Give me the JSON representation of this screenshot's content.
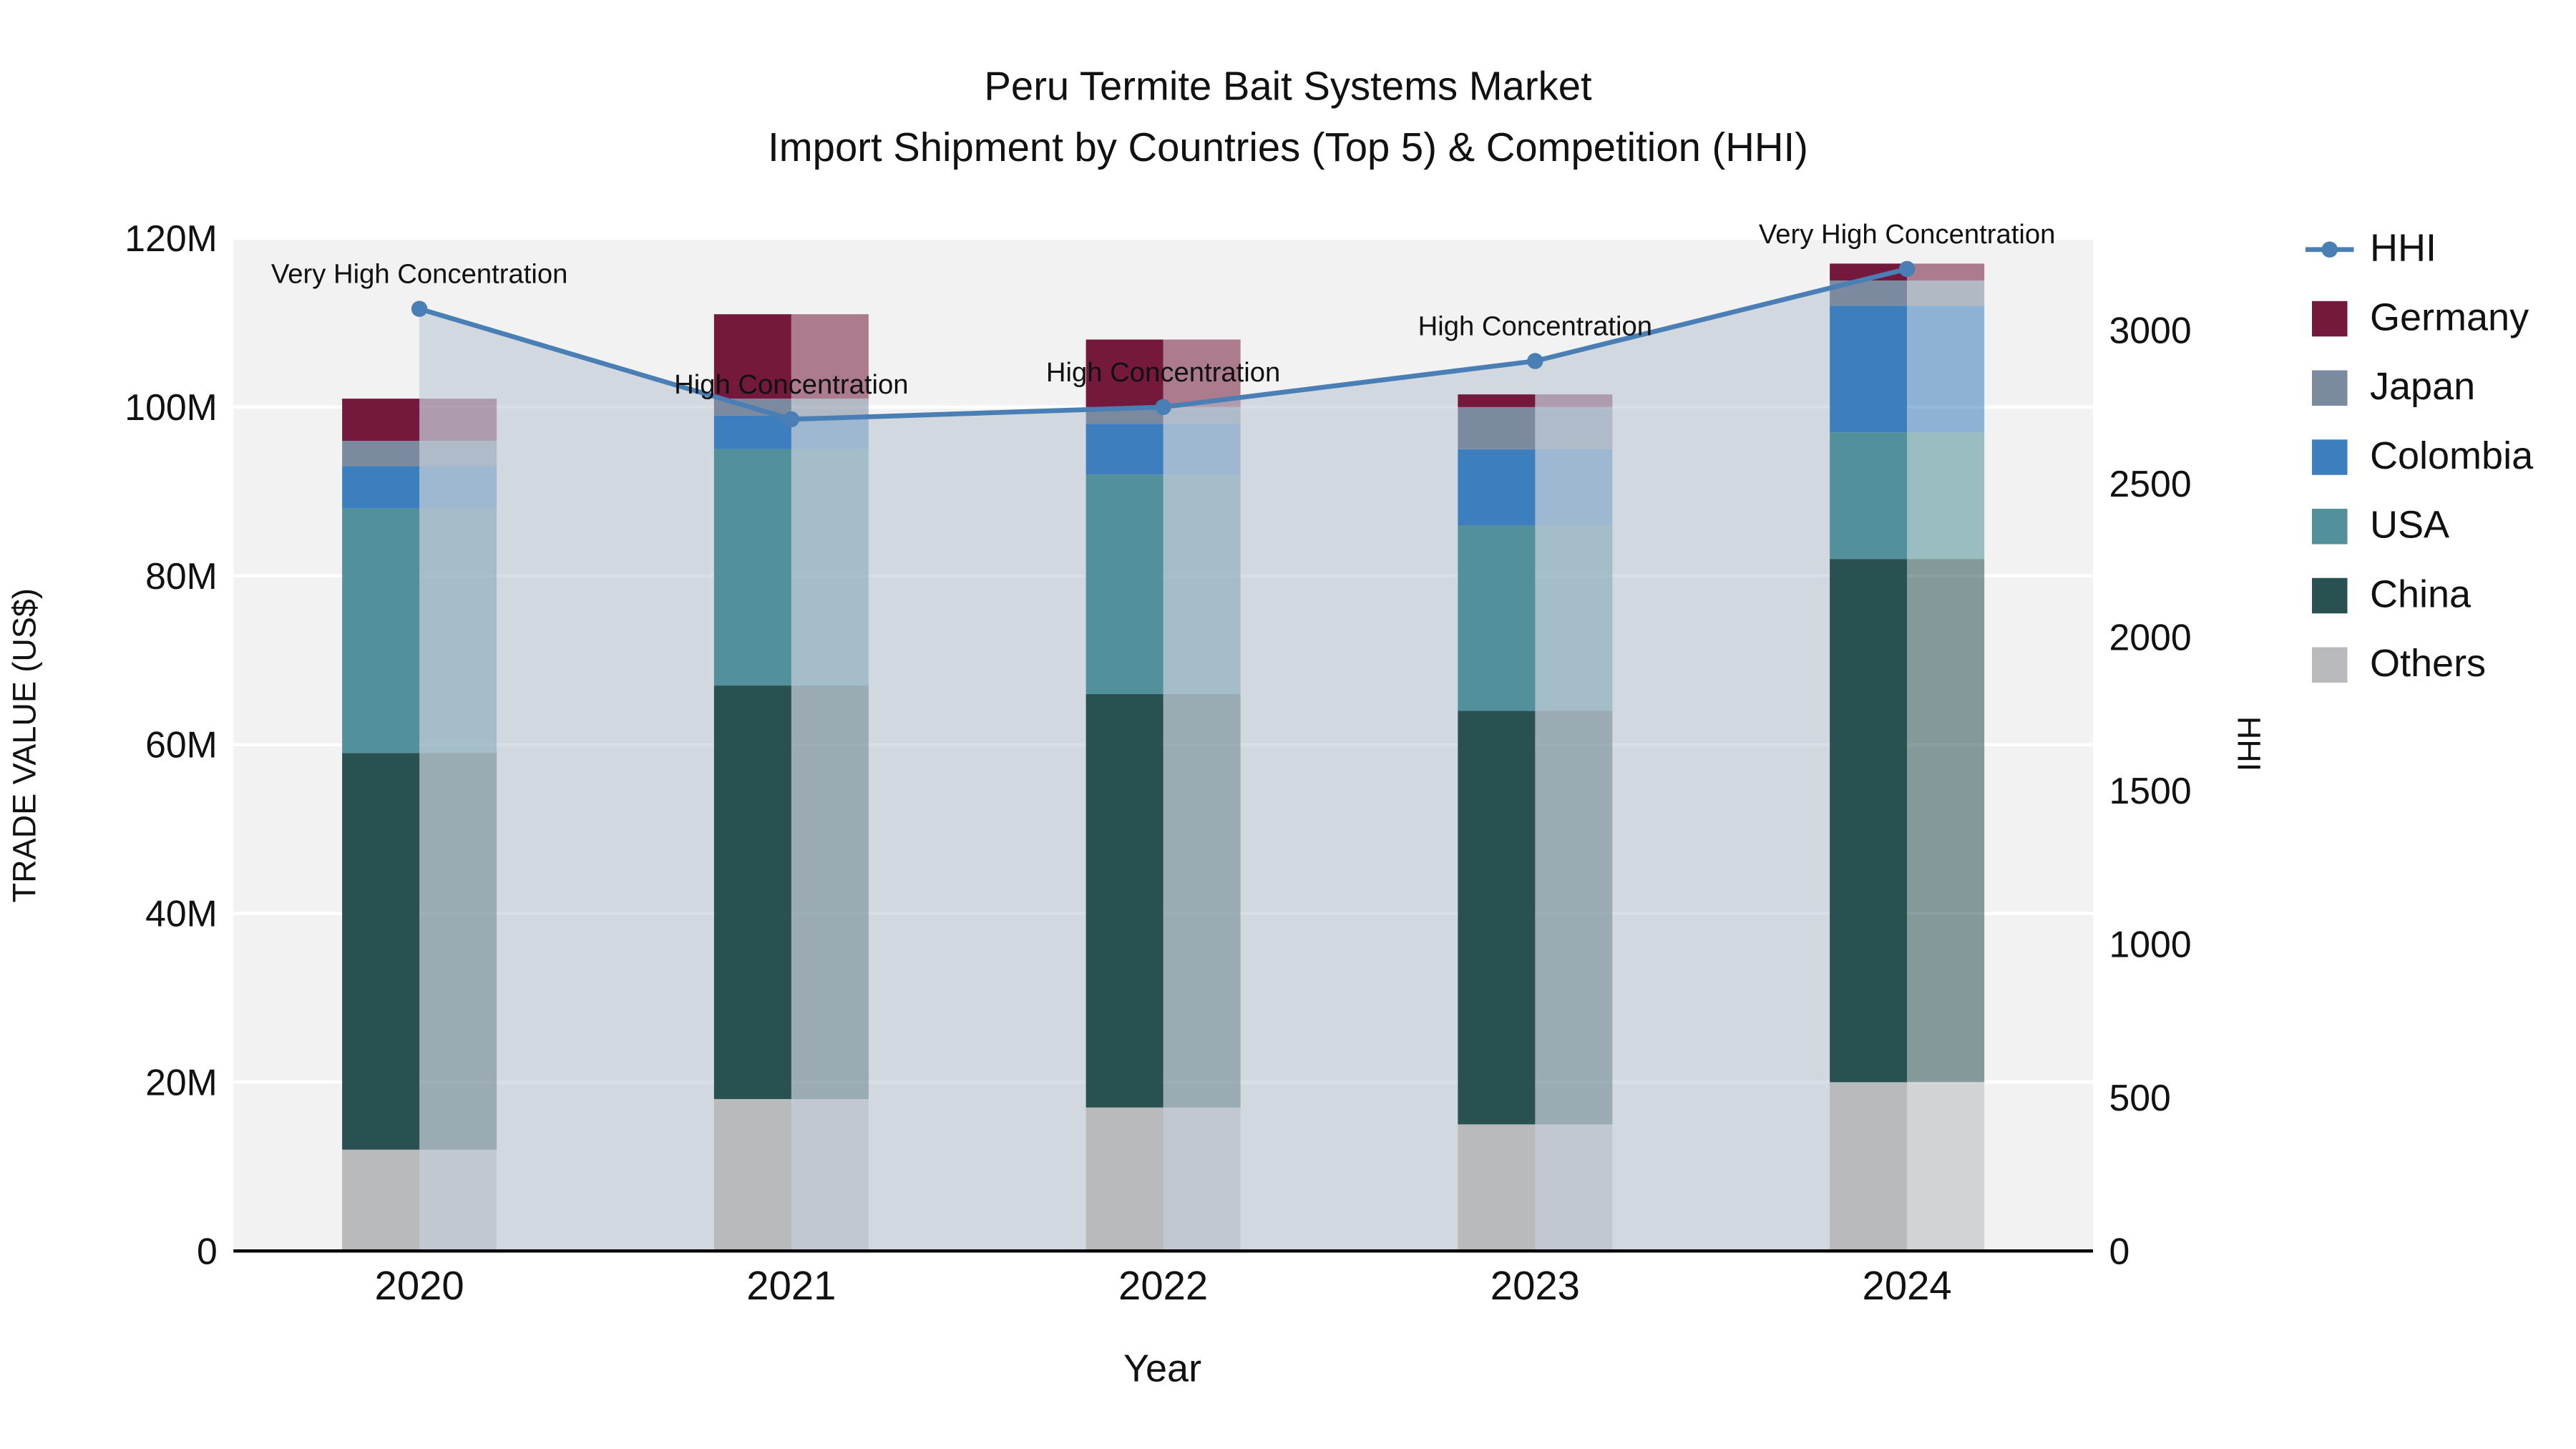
{
  "chart_data": {
    "type": "bar",
    "subtype": "stacked-bar-with-line",
    "title_line1": "Peru Termite Bait Systems Market",
    "title_line2": "Import Shipment by Countries (Top 5) & Competition (HHI)",
    "xlabel": "Year",
    "ylabel_left": "TRADE VALUE (US$)",
    "ylabel_right": "HHI",
    "categories": [
      "2020",
      "2021",
      "2022",
      "2023",
      "2024"
    ],
    "stack_order_bottom_to_top": [
      "Others",
      "China",
      "USA",
      "Colombia",
      "Japan",
      "Germany"
    ],
    "series": [
      {
        "name": "Others",
        "color": "#b8babc",
        "values": [
          12,
          18,
          17,
          15,
          20
        ]
      },
      {
        "name": "China",
        "color": "#2a5151",
        "values": [
          47,
          49,
          49,
          49,
          62
        ]
      },
      {
        "name": "USA",
        "color": "#52919b",
        "values": [
          29,
          28,
          26,
          22,
          15
        ]
      },
      {
        "name": "Colombia",
        "color": "#3d7ebf",
        "values": [
          5,
          4,
          6,
          9,
          15
        ]
      },
      {
        "name": "Japan",
        "color": "#7c8aa0",
        "values": [
          3,
          2,
          2,
          5,
          3
        ]
      },
      {
        "name": "Germany",
        "color": "#75193c",
        "values": [
          5,
          10,
          8,
          1.5,
          2
        ]
      }
    ],
    "line_series": {
      "name": "HHI",
      "color": "#4a7fb5",
      "axis": "right",
      "values": [
        3070,
        2710,
        2750,
        2900,
        3200
      ]
    },
    "annotations": [
      {
        "x": "2020",
        "text": "Very High Concentration"
      },
      {
        "x": "2021",
        "text": "High Concentration"
      },
      {
        "x": "2022",
        "text": "High Concentration"
      },
      {
        "x": "2023",
        "text": "High Concentration"
      },
      {
        "x": "2024",
        "text": "Very High Concentration"
      }
    ],
    "left_axis": {
      "tick_labels": [
        "0",
        "20M",
        "40M",
        "60M",
        "80M",
        "100M",
        "120M"
      ],
      "tick_values": [
        0,
        20,
        40,
        60,
        80,
        100,
        120
      ],
      "max": 120
    },
    "right_axis": {
      "tick_labels": [
        "0",
        "500",
        "1000",
        "1500",
        "2000",
        "2500",
        "3000"
      ],
      "tick_values": [
        0,
        500,
        1000,
        1500,
        2000,
        2500,
        3000
      ],
      "max": 3300
    },
    "legend": [
      {
        "name": "HHI",
        "type": "line",
        "color": "#4a7fb5"
      },
      {
        "name": "Germany",
        "type": "square",
        "color": "#75193c"
      },
      {
        "name": "Japan",
        "type": "square",
        "color": "#7c8aa0"
      },
      {
        "name": "Colombia",
        "type": "square",
        "color": "#3d7ebf"
      },
      {
        "name": "USA",
        "type": "square",
        "color": "#52919b"
      },
      {
        "name": "China",
        "type": "square",
        "color": "#2a5151"
      },
      {
        "name": "Others",
        "type": "square",
        "color": "#b8babc"
      }
    ],
    "style": {
      "plot_bg": "#f2f2f2",
      "grid_color": "#ffffff",
      "area_fill": "rgba(175,190,206,0.50)",
      "ghost_bar_opacity": 0.55,
      "axis_line_color": "#000000"
    }
  }
}
